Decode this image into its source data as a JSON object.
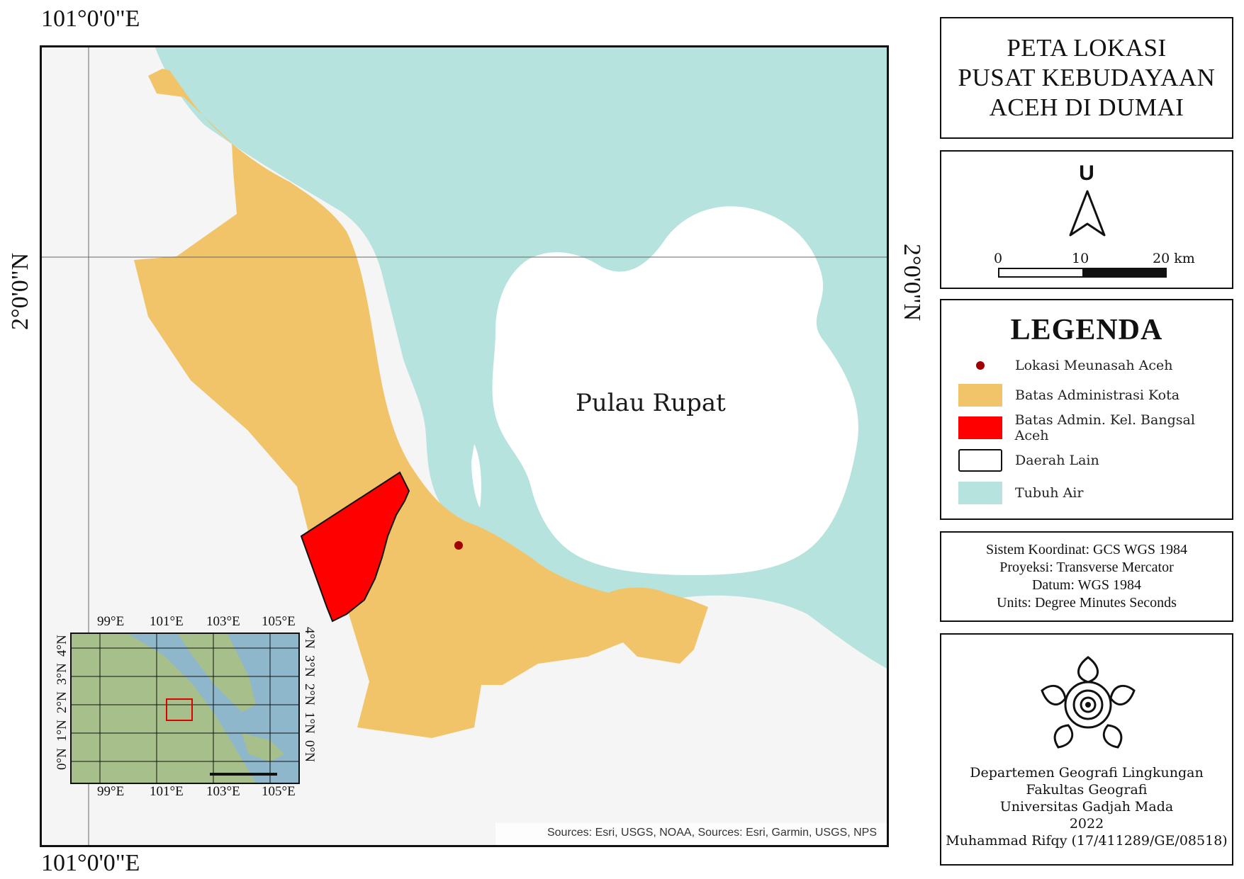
{
  "map": {
    "coord_top": "101°0'0\"E",
    "coord_bottom": "101°0'0\"E",
    "coord_left": "2°0'0\"N",
    "coord_right": "2°0'0\"N",
    "island_label": "Pulau Rupat",
    "attribution": "Sources: Esri, USGS, NOAA, Sources: Esri, Garmin, USGS, NPS",
    "colors": {
      "water": "#b6e3dd",
      "city": "#f2c46a",
      "kelurahan": "#ff0000",
      "other": "#f4f5f4",
      "point": "#a30000"
    }
  },
  "title": {
    "lines": [
      "PETA LOKASI",
      "PUSAT KEBUDAYAAN",
      "ACEH DI DUMAI"
    ]
  },
  "north_arrow": {
    "letter": "U",
    "scale_labels": [
      "0",
      "10",
      "20 km"
    ]
  },
  "legend": {
    "title": "LEGENDA",
    "items": [
      {
        "label": "Lokasi Meunasah Aceh",
        "type": "point",
        "color": "#a30000"
      },
      {
        "label": "Batas Administrasi Kota",
        "type": "fill",
        "color": "#f2c46a"
      },
      {
        "label": "Batas Admin. Kel. Bangsal Aceh",
        "type": "fill",
        "color": "#ff0000"
      },
      {
        "label": "Daerah Lain",
        "type": "outline",
        "color": "#ffffff"
      },
      {
        "label": "Tubuh Air",
        "type": "fill",
        "color": "#b6e3dd"
      }
    ]
  },
  "info": {
    "lines": [
      "Sistem Koordinat: GCS WGS 1984",
      "Proyeksi: Transverse Mercator",
      "Datum: WGS 1984",
      "Units: Degree Minutes Seconds"
    ]
  },
  "credit": {
    "lines": [
      "Departemen Geografi Lingkungan",
      "Fakultas Geografi",
      "Universitas Gadjah Mada",
      "2022",
      "Muhammad Rifqy (17/411289/GE/08518)"
    ]
  },
  "inset": {
    "top_labels": [
      "99°E",
      "101°E",
      "103°E",
      "105°E"
    ],
    "bottom_labels": [
      "99°E",
      "101°E",
      "103°E",
      "105°E"
    ],
    "left_labels": [
      "4°N",
      "3°N",
      "2°N",
      "1°N",
      "0°N"
    ],
    "right_labels": [
      "4°N",
      "3°N",
      "2°N",
      "1°N",
      "0°N"
    ]
  }
}
